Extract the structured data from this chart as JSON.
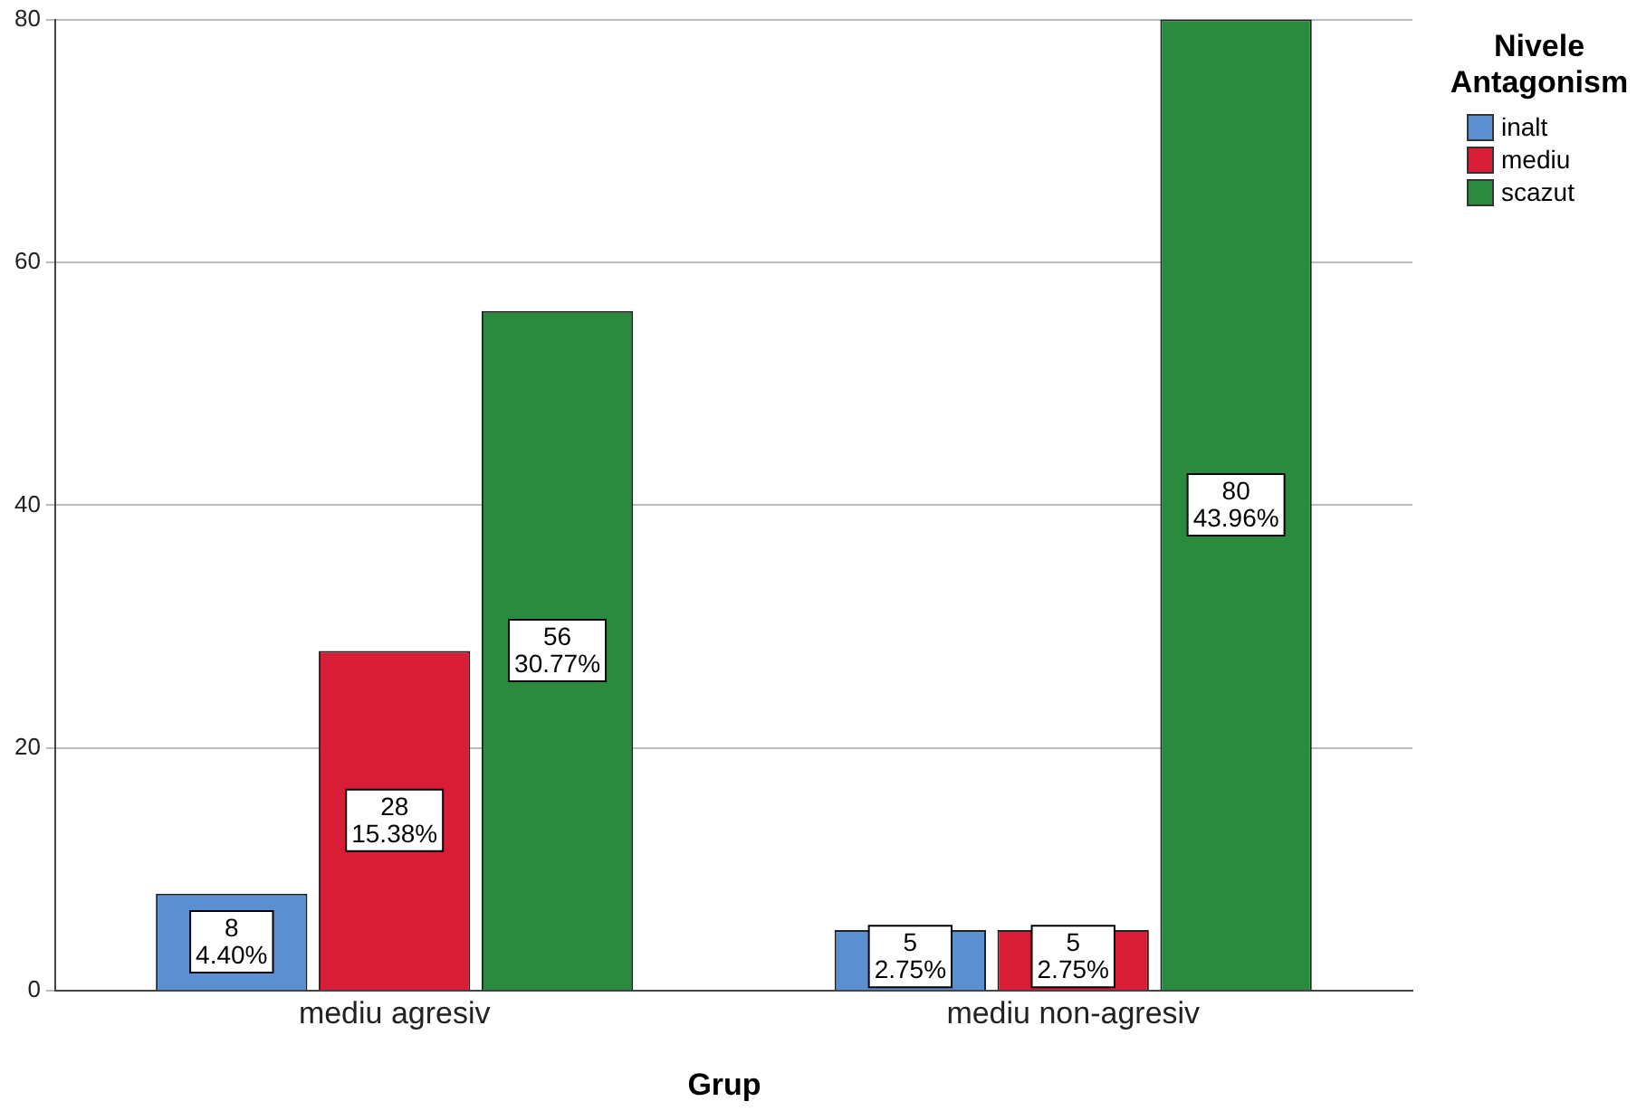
{
  "chart_data": {
    "type": "bar",
    "xlabel": "Grup",
    "legend_title": "Nivele Antagonism",
    "categories": [
      "mediu agresiv",
      "mediu non-agresiv"
    ],
    "series": [
      {
        "name": "inalt",
        "color": "#5b8fd1",
        "values": [
          8,
          5
        ],
        "value_labels": [
          "8\n4.40%",
          "5\n2.75%"
        ]
      },
      {
        "name": "mediu",
        "color": "#d81e36",
        "values": [
          28,
          5
        ],
        "value_labels": [
          "28\n15.38%",
          "5\n2.75%"
        ]
      },
      {
        "name": "scazut",
        "color": "#2a8a3e",
        "values": [
          56,
          80
        ],
        "value_labels": [
          "56\n30.77%",
          "80\n43.96%"
        ]
      }
    ],
    "ylim": [
      0,
      80
    ],
    "yticks": [
      0,
      20,
      40,
      60,
      80
    ],
    "grid": "y",
    "legend": "top right"
  }
}
